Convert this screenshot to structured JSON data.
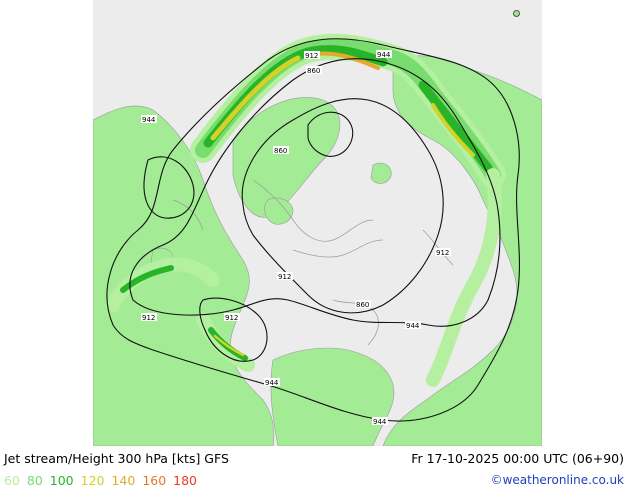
{
  "header": {
    "title": "Jet stream/Height 300 hPa [kts] GFS",
    "valid_time": "Fr 17-10-2025 00:00 UTC (06+90)"
  },
  "legend": {
    "items": [
      {
        "label": "60",
        "color": "#b4f0a0"
      },
      {
        "label": "80",
        "color": "#78dc6e"
      },
      {
        "label": "100",
        "color": "#28b428"
      },
      {
        "label": "120",
        "color": "#d2d228"
      },
      {
        "label": "140",
        "color": "#e6aa28"
      },
      {
        "label": "160",
        "color": "#e67828"
      },
      {
        "label": "180",
        "color": "#e63c28"
      }
    ]
  },
  "footer": {
    "credit": "©weatheronline.co.uk"
  },
  "contour_labels": [
    "944",
    "912",
    "944",
    "860",
    "860",
    "912",
    "912",
    "860",
    "912",
    "912",
    "944",
    "944"
  ]
}
